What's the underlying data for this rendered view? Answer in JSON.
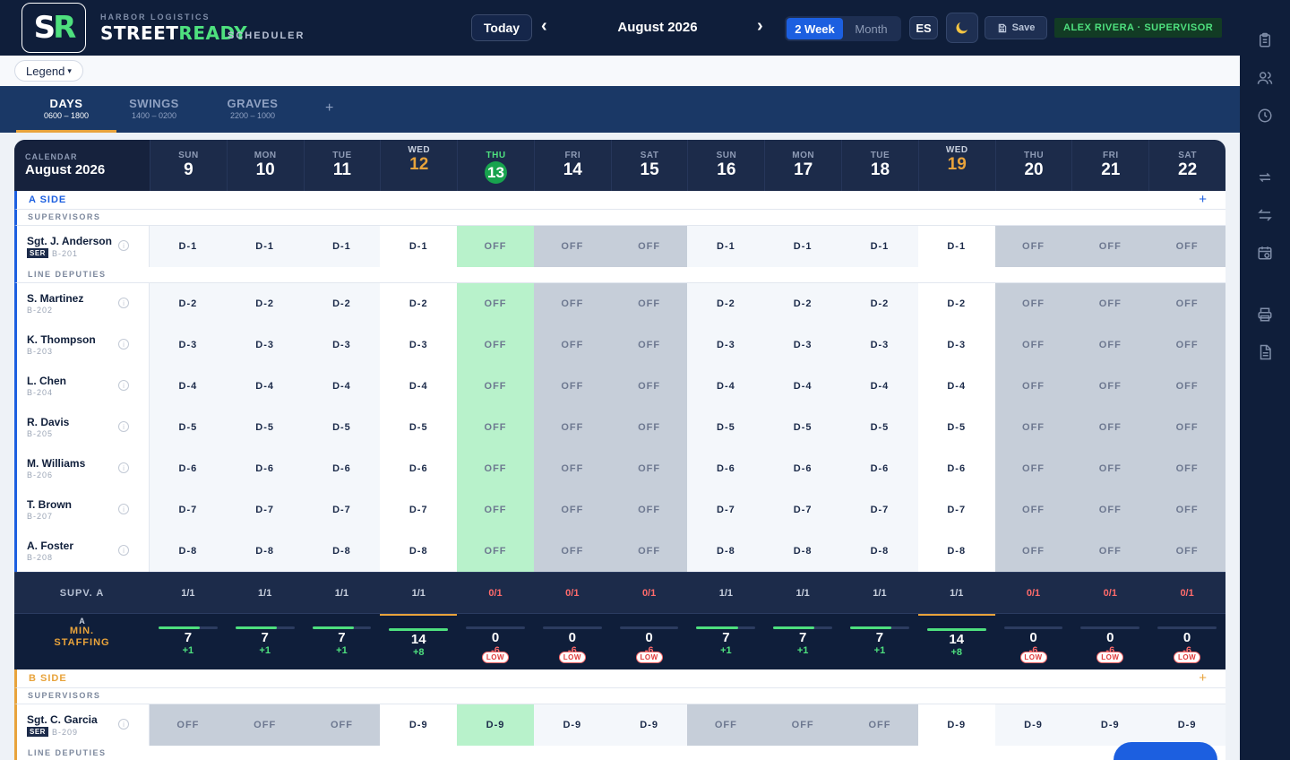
{
  "header": {
    "org": "HARBOR LOGISTICS",
    "app_name_1": "STREET",
    "app_name_2": "READY",
    "app_sub": "SCHEDULER",
    "logo_s": "S",
    "logo_r": "R",
    "today_label": "Today",
    "prev_icon": "‹",
    "next_icon": "›",
    "period": "August 2026",
    "views": [
      "2 Week",
      "Month"
    ],
    "active_view": "2 Week",
    "lang": "ES",
    "theme_icon": "moon-icon",
    "save_label": "Save",
    "user": "ALEX RIVERA · SUPERVISOR"
  },
  "legend": {
    "label": "Legend",
    "caret": "▾"
  },
  "tabs": [
    {
      "name": "DAYS",
      "hours": "0600 – 1800",
      "active": true
    },
    {
      "name": "SWINGS",
      "hours": "1400 – 0200",
      "active": false
    },
    {
      "name": "GRAVES",
      "hours": "2200 – 1000",
      "active": false
    }
  ],
  "tab_add": "+",
  "calendar": {
    "label": "CALENDAR",
    "month": "August 2026",
    "days": [
      {
        "dow": "SUN",
        "num": "9"
      },
      {
        "dow": "MON",
        "num": "10"
      },
      {
        "dow": "TUE",
        "num": "11"
      },
      {
        "dow": "WED",
        "num": "12"
      },
      {
        "dow": "THU",
        "num": "13"
      },
      {
        "dow": "FRI",
        "num": "14"
      },
      {
        "dow": "SAT",
        "num": "15"
      },
      {
        "dow": "SUN",
        "num": "16"
      },
      {
        "dow": "MON",
        "num": "17"
      },
      {
        "dow": "TUE",
        "num": "18"
      },
      {
        "dow": "WED",
        "num": "19"
      },
      {
        "dow": "THU",
        "num": "20"
      },
      {
        "dow": "FRI",
        "num": "21"
      },
      {
        "dow": "SAT",
        "num": "22"
      }
    ],
    "today_index": 4,
    "highlight_indices": [
      3,
      10
    ]
  },
  "side_a": {
    "label": "A SIDE",
    "add": "+",
    "color": "#1c5fe0",
    "supervisors_label": "SUPERVISORS",
    "deputies_label": "LINE DEPUTIES",
    "supervisors": [
      {
        "name": "Sgt. J. Anderson",
        "tag": "SER",
        "badge": "B-201",
        "shifts": [
          "D-1",
          "D-1",
          "D-1",
          "D-1",
          "OFF",
          "OFF",
          "OFF",
          "D-1",
          "D-1",
          "D-1",
          "D-1",
          "OFF",
          "OFF",
          "OFF"
        ]
      }
    ],
    "deputies": [
      {
        "name": "S. Martinez",
        "badge": "B-202",
        "shifts": [
          "D-2",
          "D-2",
          "D-2",
          "D-2",
          "OFF",
          "OFF",
          "OFF",
          "D-2",
          "D-2",
          "D-2",
          "D-2",
          "OFF",
          "OFF",
          "OFF"
        ]
      },
      {
        "name": "K. Thompson",
        "badge": "B-203",
        "shifts": [
          "D-3",
          "D-3",
          "D-3",
          "D-3",
          "OFF",
          "OFF",
          "OFF",
          "D-3",
          "D-3",
          "D-3",
          "D-3",
          "OFF",
          "OFF",
          "OFF"
        ]
      },
      {
        "name": "L. Chen",
        "badge": "B-204",
        "shifts": [
          "D-4",
          "D-4",
          "D-4",
          "D-4",
          "OFF",
          "OFF",
          "OFF",
          "D-4",
          "D-4",
          "D-4",
          "D-4",
          "OFF",
          "OFF",
          "OFF"
        ]
      },
      {
        "name": "R. Davis",
        "badge": "B-205",
        "shifts": [
          "D-5",
          "D-5",
          "D-5",
          "D-5",
          "OFF",
          "OFF",
          "OFF",
          "D-5",
          "D-5",
          "D-5",
          "D-5",
          "OFF",
          "OFF",
          "OFF"
        ]
      },
      {
        "name": "M. Williams",
        "badge": "B-206",
        "shifts": [
          "D-6",
          "D-6",
          "D-6",
          "D-6",
          "OFF",
          "OFF",
          "OFF",
          "D-6",
          "D-6",
          "D-6",
          "D-6",
          "OFF",
          "OFF",
          "OFF"
        ]
      },
      {
        "name": "T. Brown",
        "badge": "B-207",
        "shifts": [
          "D-7",
          "D-7",
          "D-7",
          "D-7",
          "OFF",
          "OFF",
          "OFF",
          "D-7",
          "D-7",
          "D-7",
          "D-7",
          "OFF",
          "OFF",
          "OFF"
        ]
      },
      {
        "name": "A. Foster",
        "badge": "B-208",
        "shifts": [
          "D-8",
          "D-8",
          "D-8",
          "D-8",
          "OFF",
          "OFF",
          "OFF",
          "D-8",
          "D-8",
          "D-8",
          "D-8",
          "OFF",
          "OFF",
          "OFF"
        ]
      }
    ],
    "supv_label": "SUPV. A",
    "supv_counts": [
      "1/1",
      "1/1",
      "1/1",
      "1/1",
      "0/1",
      "0/1",
      "0/1",
      "1/1",
      "1/1",
      "1/1",
      "1/1",
      "0/1",
      "0/1",
      "0/1"
    ],
    "min_label_a": "A",
    "min_label_1": "MIN.",
    "min_label_2": "STAFFING",
    "min_counts": [
      "7",
      "7",
      "7",
      "14",
      "0",
      "0",
      "0",
      "7",
      "7",
      "7",
      "14",
      "0",
      "0",
      "0"
    ],
    "min_deltas": [
      "+1",
      "+1",
      "+1",
      "+8",
      "-6",
      "-6",
      "-6",
      "+1",
      "+1",
      "+1",
      "+8",
      "-6",
      "-6",
      "-6"
    ],
    "min_fill": [
      0.7,
      0.7,
      0.7,
      1,
      0,
      0,
      0,
      0.7,
      0.7,
      0.7,
      1,
      0,
      0,
      0
    ],
    "low_label": "LOW"
  },
  "side_b": {
    "label": "B SIDE",
    "add": "+",
    "color": "#e8a33b",
    "supervisors_label": "SUPERVISORS",
    "deputies_label": "LINE DEPUTIES",
    "supervisors": [
      {
        "name": "Sgt. C. Garcia",
        "tag": "SER",
        "badge": "B-209",
        "shifts": [
          "OFF",
          "OFF",
          "OFF",
          "D-9",
          "D-9",
          "D-9",
          "D-9",
          "OFF",
          "OFF",
          "OFF",
          "D-9",
          "D-9",
          "D-9",
          "D-9"
        ]
      }
    ]
  },
  "info_icon": "i",
  "rail_icons": [
    "clipboard-icon",
    "users-icon",
    "clock-icon",
    "swap-icon",
    "transfer-icon",
    "calendar-clock-icon",
    "printer-icon",
    "document-icon"
  ]
}
